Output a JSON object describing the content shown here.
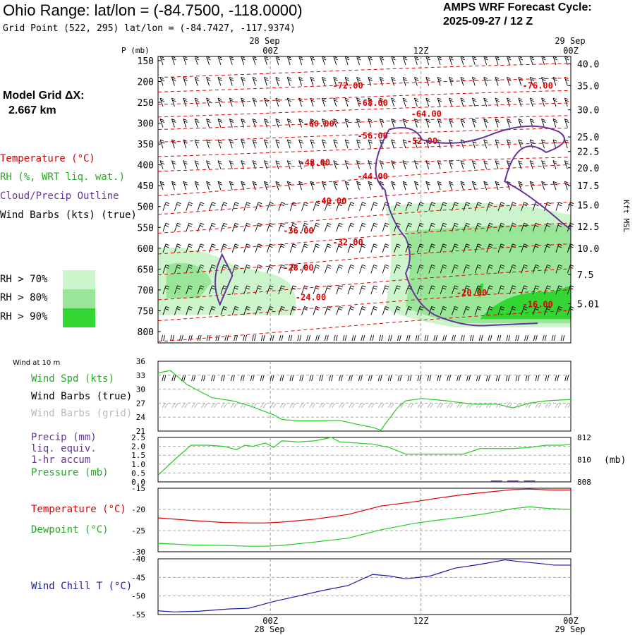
{
  "header": {
    "title": "Ohio Range:  lat/lon = (-84.7500, -118.0000)",
    "grid_point": "Grid Point (522, 295) lat/lon = (-84.7427, -117.9374)",
    "forecast_label": "AMPS WRF Forecast Cycle:",
    "cycle": "2025-09-27 / 12  Z"
  },
  "model_grid": {
    "label": "Model Grid ΔX:",
    "value": "2.667 km"
  },
  "time_axis": {
    "top_date_left": "28 Sep",
    "top_date_right": "29 Sep",
    "ticks": [
      "00Z",
      "12Z",
      "00Z"
    ],
    "bottom_date_left": "28 Sep",
    "bottom_date_right": "29 Sep"
  },
  "legend": {
    "temperature": "Temperature (°C)",
    "rh": "RH (%, WRT liq. wat.)",
    "cloud": "Cloud/Precip Outline",
    "wind_barbs": "Wind Barbs (kts) (true)",
    "rh70": "RH > 70%",
    "rh80": "RH > 80%",
    "rh90": "RH > 90%"
  },
  "colors": {
    "temperature": "#e00000",
    "rh70": "#ccf5cc",
    "rh80": "#99e699",
    "rh90": "#33d633",
    "cloud": "#66339a",
    "line_green": "#22cc22",
    "wind_chill": "#1a1aa8"
  },
  "chart_data": [
    {
      "type": "time-height",
      "name": "cross-section",
      "p_label": "P (mb)",
      "pressure_levels": [
        150,
        200,
        250,
        300,
        350,
        400,
        450,
        500,
        550,
        600,
        650,
        700,
        750,
        800
      ],
      "kft_label": "Kft MSL",
      "kft_ticks": [
        "40.0",
        "35.0",
        "30.0",
        "25.0",
        "22.5",
        "20.0",
        "17.5",
        "15.0",
        "12.5",
        "10.0",
        "7.5",
        "5.01"
      ],
      "kft_pressure": [
        158,
        210,
        268,
        333,
        368,
        407,
        450,
        496,
        548,
        600,
        663,
        733
      ],
      "kft_bottom": "5.01",
      "temperature_labels": [
        {
          "text": "-72.00",
          "t": 0.46,
          "p": 210
        },
        {
          "text": "-76.00",
          "t": 0.92,
          "p": 210
        },
        {
          "text": "-68.00",
          "t": 0.52,
          "p": 252
        },
        {
          "text": "-64.00",
          "t": 0.65,
          "p": 278
        },
        {
          "text": "-60.00",
          "t": 0.39,
          "p": 302
        },
        {
          "text": "-56.00",
          "t": 0.52,
          "p": 330
        },
        {
          "text": "-52.00",
          "t": 0.64,
          "p": 343
        },
        {
          "text": "-48.00",
          "t": 0.38,
          "p": 395
        },
        {
          "text": "-44.00",
          "t": 0.52,
          "p": 428
        },
        {
          "text": "-40.00",
          "t": 0.42,
          "p": 487
        },
        {
          "text": "-36.00",
          "t": 0.34,
          "p": 558
        },
        {
          "text": "-32.00",
          "t": 0.46,
          "p": 586
        },
        {
          "text": "-28.00",
          "t": 0.34,
          "p": 647
        },
        {
          "text": "-24.00",
          "t": 0.37,
          "p": 718
        },
        {
          "text": "-20.00",
          "t": 0.76,
          "p": 707
        },
        {
          "text": "-16.00",
          "t": 0.92,
          "p": 735
        }
      ]
    },
    {
      "type": "line",
      "name": "surface-wind",
      "title": "Wind at 10 m",
      "labels": [
        "Wind Spd (kts)",
        "Wind Barbs (true)",
        "Wind Barbs (grid)"
      ],
      "ylim": [
        21,
        36
      ],
      "yticks": [
        36,
        33,
        30,
        27,
        24,
        21
      ],
      "x": [
        0,
        0.03,
        0.07,
        0.13,
        0.18,
        0.22,
        0.28,
        0.3,
        0.34,
        0.38,
        0.44,
        0.48,
        0.52,
        0.54,
        0.55,
        0.58,
        0.6,
        0.64,
        0.7,
        0.76,
        0.82,
        0.86,
        0.9,
        0.94,
        1
      ],
      "values": [
        33.5,
        34,
        31,
        28.2,
        27.5,
        26.5,
        24.5,
        23.5,
        23.2,
        23.2,
        23.3,
        22.5,
        21.8,
        21.2,
        22.5,
        26,
        27.5,
        28,
        27.5,
        26.8,
        26.8,
        26,
        27,
        27.5,
        27.8
      ]
    },
    {
      "type": "line",
      "name": "precip-pressure",
      "labels": [
        "Precip (mm)",
        "liq. equiv.",
        "1-hr accum",
        "Pressure (mb)"
      ],
      "left_ylim": [
        0,
        2.5
      ],
      "left_yticks": [
        "2.5",
        "2.0",
        "1.5",
        "1.0",
        "0.5",
        "0.0"
      ],
      "right_ylim": [
        808,
        812
      ],
      "right_yticks": [
        "812",
        "810",
        "808"
      ],
      "right_unit": "(mb)",
      "x": [
        0,
        0.04,
        0.08,
        0.12,
        0.16,
        0.19,
        0.21,
        0.23,
        0.26,
        0.28,
        0.3,
        0.34,
        0.38,
        0.42,
        0.44,
        0.48,
        0.52,
        0.56,
        0.6,
        0.66,
        0.72,
        0.74,
        0.78,
        0.86,
        0.9,
        0.94,
        0.98,
        1
      ],
      "values": [
        808.6,
        810,
        811.3,
        811.3,
        811.2,
        810.9,
        811.3,
        811.2,
        811.5,
        811.1,
        811.7,
        811.6,
        811.7,
        812,
        811.6,
        811.5,
        811.4,
        811.1,
        810.5,
        810.5,
        810.5,
        810.5,
        811,
        811,
        811.1,
        811.3,
        811.3,
        811.4
      ],
      "precip": [
        {
          "x": 0.82,
          "mm": 0
        },
        {
          "x": 0.86,
          "mm": 0
        },
        {
          "x": 0.9,
          "mm": 0
        }
      ]
    },
    {
      "type": "line",
      "name": "temperature-dewpoint",
      "labels": [
        "Temperature (°C)",
        "Dewpoint (°C)"
      ],
      "ylim": [
        -30,
        -15
      ],
      "yticks": [
        -15,
        -20,
        -25,
        -30
      ],
      "x": [
        0,
        0.08,
        0.16,
        0.22,
        0.26,
        0.3,
        0.38,
        0.46,
        0.54,
        0.62,
        0.68,
        0.74,
        0.8,
        0.86,
        0.9,
        0.95,
        1
      ],
      "series": [
        {
          "name": "Temperature",
          "values": [
            -22,
            -22.6,
            -23.1,
            -23.2,
            -23.2,
            -23,
            -22.3,
            -21.2,
            -19.2,
            -18.2,
            -17.3,
            -16.5,
            -15.9,
            -15.3,
            -15.2,
            -15.4,
            -15.4
          ]
        },
        {
          "name": "Dewpoint",
          "values": [
            -28,
            -28.4,
            -28.5,
            -28.7,
            -28.7,
            -28.5,
            -27.7,
            -26.8,
            -24.8,
            -23.3,
            -22.5,
            -21.8,
            -20.9,
            -19.8,
            -19.4,
            -19.8,
            -20
          ]
        }
      ]
    },
    {
      "type": "line",
      "name": "wind-chill",
      "labels": [
        "Wind Chill T (°C)"
      ],
      "ylim": [
        -55,
        -40
      ],
      "yticks": [
        -40,
        -45,
        -50,
        -55
      ],
      "x": [
        0,
        0.04,
        0.1,
        0.17,
        0.22,
        0.28,
        0.34,
        0.4,
        0.46,
        0.52,
        0.56,
        0.6,
        0.66,
        0.72,
        0.78,
        0.84,
        0.88,
        0.92,
        0.96,
        1
      ],
      "values": [
        -54,
        -54.3,
        -54.1,
        -53.5,
        -53.3,
        -51.5,
        -50,
        -48.5,
        -47.2,
        -44.2,
        -44.6,
        -45.4,
        -44.6,
        -42.5,
        -41.5,
        -40.3,
        -40.8,
        -41.2,
        -41.7,
        -41.7
      ]
    }
  ]
}
